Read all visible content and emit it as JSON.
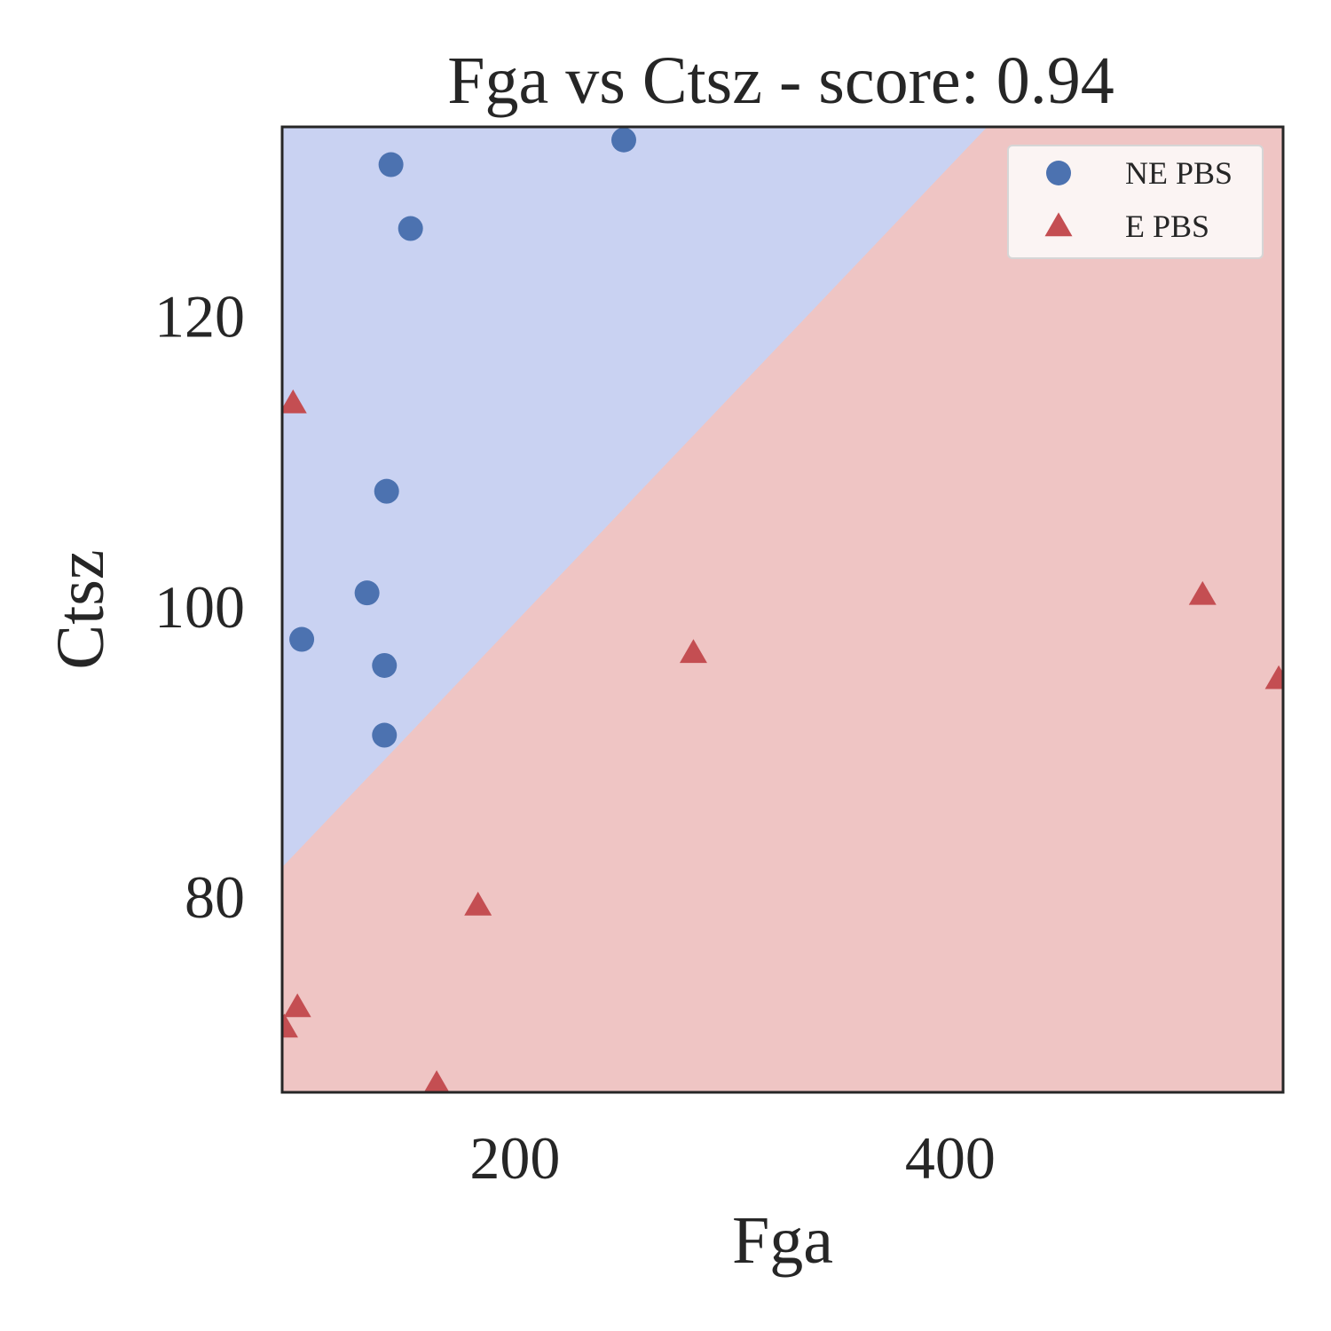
{
  "chart_data": {
    "type": "scatter",
    "title": "Fga vs Ctsz - score: 0.94",
    "xlabel": "Fga",
    "ylabel": "Ctsz",
    "xlim": [
      93,
      553
    ],
    "ylim": [
      66.5,
      133
    ],
    "xticks": [
      200,
      400
    ],
    "yticks": [
      80,
      100,
      120
    ],
    "grid": false,
    "legend_position": "top-right",
    "decision_boundary": {
      "points": [
        [
          93,
          82.0
        ],
        [
          417,
          133.0
        ]
      ],
      "upper_region_class": "NE PBS",
      "lower_region_class": "E PBS"
    },
    "series": [
      {
        "name": "NE PBS",
        "marker": "circle",
        "color": "#4c72b0",
        "points": [
          [
            250,
            132.1
          ],
          [
            143,
            130.4
          ],
          [
            152,
            126.0
          ],
          [
            141,
            107.9
          ],
          [
            132,
            100.9
          ],
          [
            102,
            97.7
          ],
          [
            140,
            95.9
          ],
          [
            140,
            91.1
          ]
        ]
      },
      {
        "name": "E PBS",
        "marker": "triangle",
        "color": "#c44e52",
        "points": [
          [
            98,
            113.9
          ],
          [
            516,
            100.7
          ],
          [
            282,
            96.7
          ],
          [
            551,
            94.9
          ],
          [
            183,
            79.3
          ],
          [
            100,
            72.3
          ],
          [
            94,
            70.9
          ],
          [
            164,
            67.0
          ]
        ]
      }
    ],
    "region_colors": {
      "NE PBS": "#c9d2f2",
      "E PBS": "#efc5c4"
    }
  }
}
